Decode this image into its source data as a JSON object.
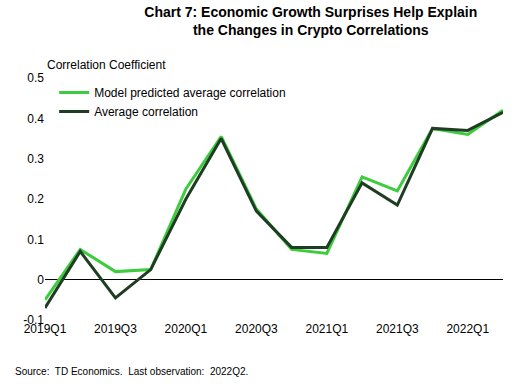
{
  "chart_data": {
    "type": "line",
    "title": "Chart 7: Economic Growth Surprises Help Explain\nthe Changes in Crypto Correlations",
    "y_label": "Correlation Coefficient",
    "source": "Source:  TD Economics.  Last observation:  2022Q2.",
    "categories": [
      "2019Q1",
      null,
      "2019Q3",
      null,
      "2020Q1",
      null,
      "2020Q3",
      null,
      "2021Q1",
      null,
      "2021Q3",
      null,
      "2022Q1",
      null
    ],
    "series": [
      {
        "name": "Model predicted average correlation",
        "color": "#3dcc3d",
        "values": [
          -0.05,
          0.075,
          0.02,
          0.025,
          0.225,
          0.355,
          0.175,
          0.075,
          0.065,
          0.255,
          0.22,
          0.375,
          0.36,
          0.42
        ]
      },
      {
        "name": "Average correlation",
        "color": "#1e3d23",
        "values": [
          -0.07,
          0.07,
          -0.045,
          0.025,
          0.2,
          0.35,
          0.17,
          0.08,
          0.08,
          0.24,
          0.185,
          0.375,
          0.37,
          0.415
        ]
      }
    ],
    "ylim": [
      -0.1,
      0.5
    ],
    "yticks": [
      -0.1,
      0,
      0.1,
      0.2,
      0.3,
      0.4,
      0.5
    ],
    "grid": false,
    "legend": "top left"
  }
}
